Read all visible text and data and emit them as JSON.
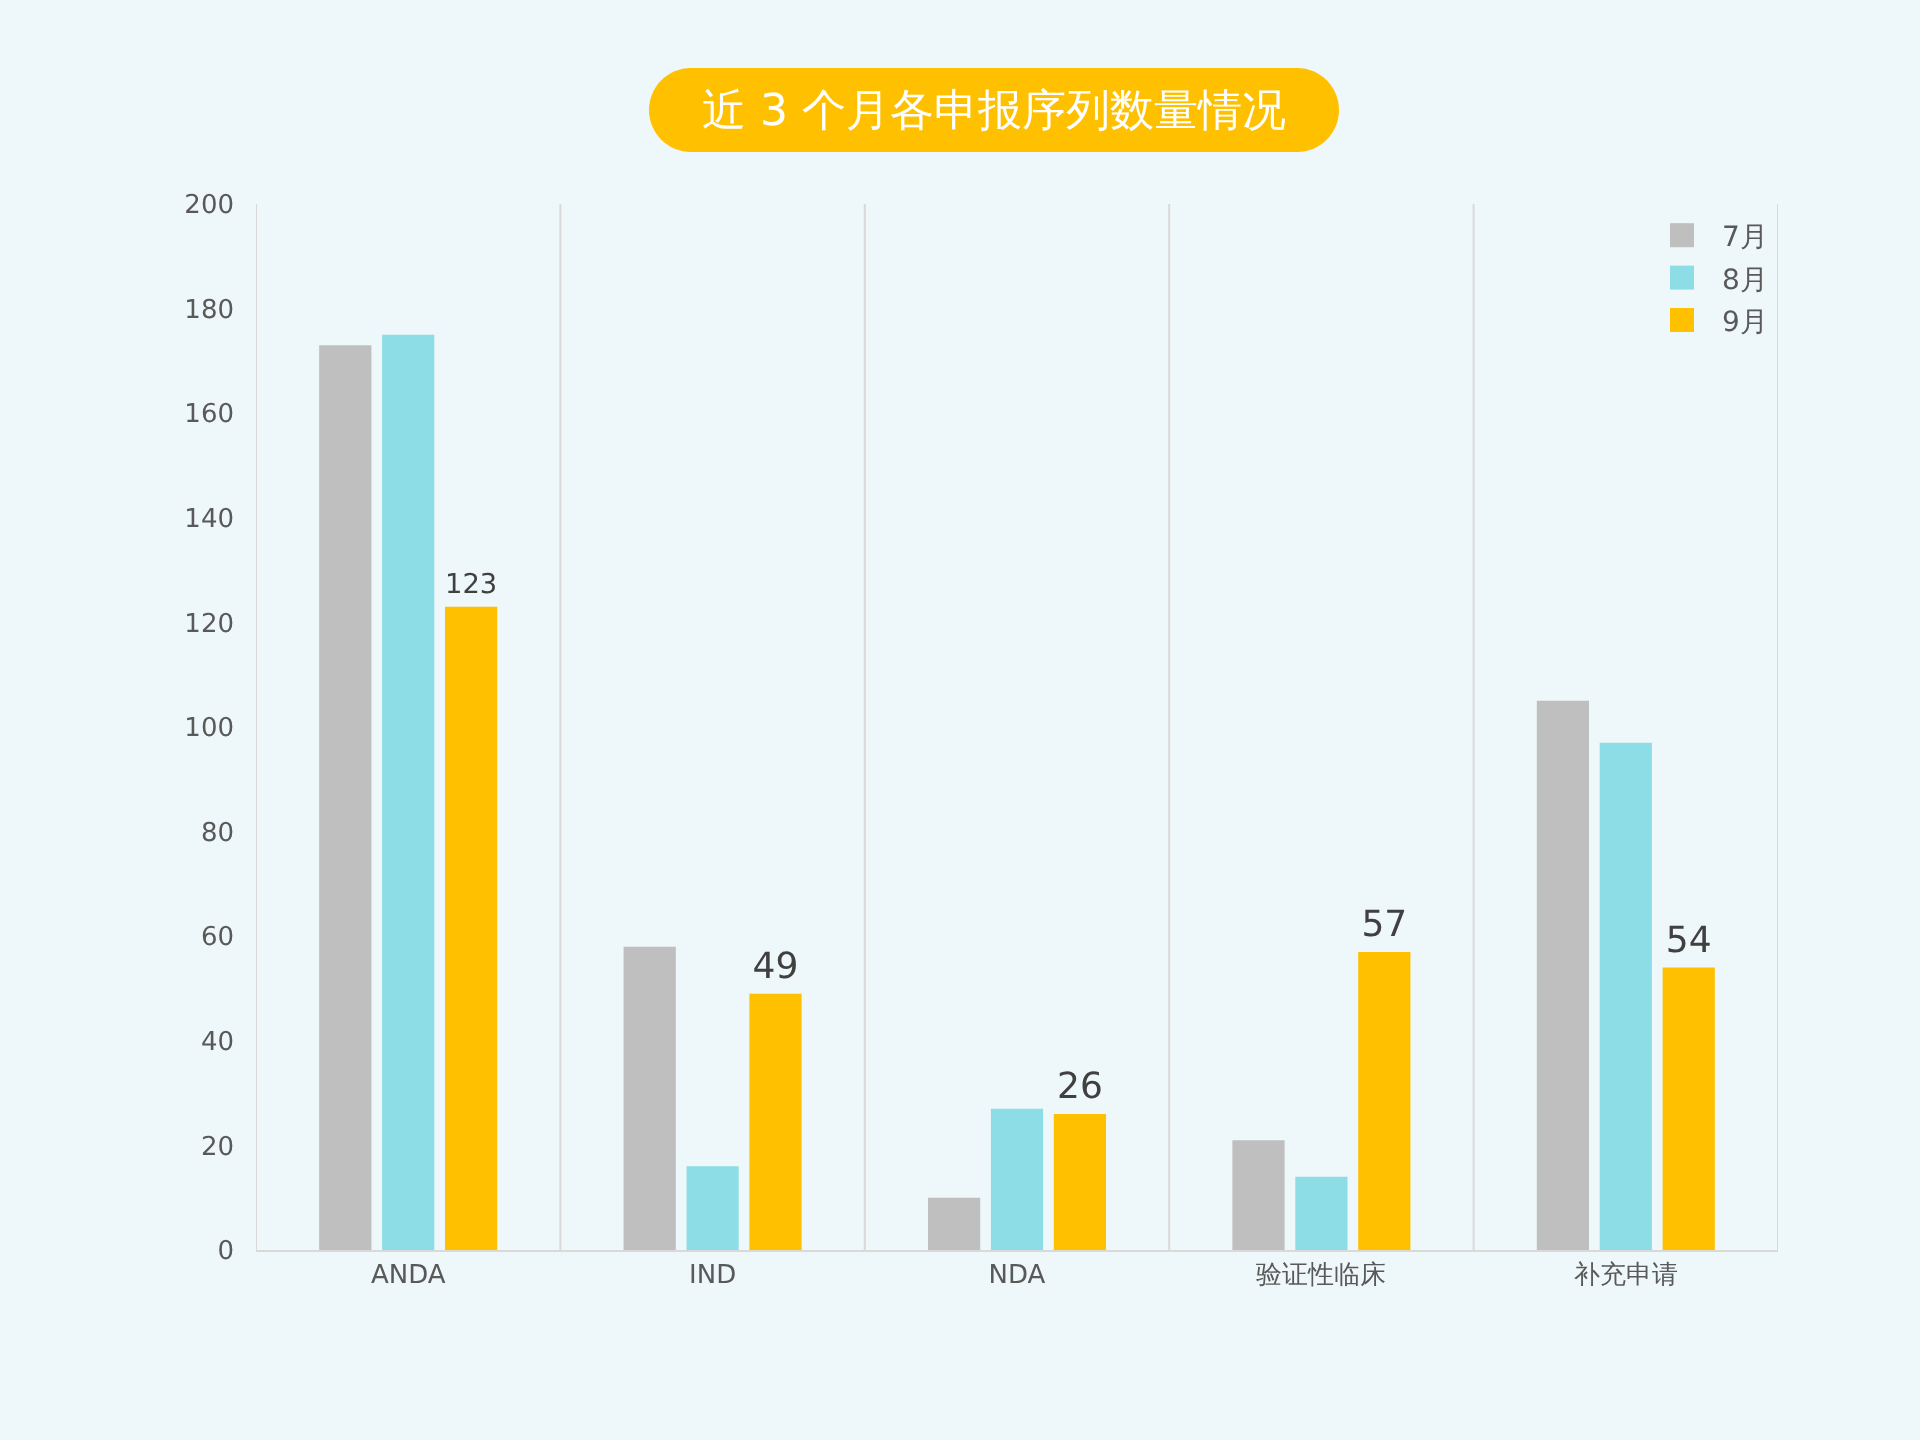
{
  "chart_data": {
    "type": "bar",
    "title": "近 3 个月各申报序列数量情况",
    "categories": [
      "ANDA",
      "IND",
      "NDA",
      "验证性临床",
      "补充申请"
    ],
    "series": [
      {
        "name": "7月",
        "color": "#bfbfbf",
        "values": [
          173,
          58,
          10,
          21,
          105
        ]
      },
      {
        "name": "8月",
        "color": "#8ddde6",
        "values": [
          175,
          16,
          27,
          14,
          97
        ]
      },
      {
        "name": "9月",
        "color": "#ffc000",
        "values": [
          123,
          49,
          26,
          57,
          54
        ],
        "value_labels": [
          "123",
          "49",
          "26",
          "57",
          "54"
        ]
      }
    ],
    "ylim": [
      0,
      200
    ],
    "yticks": [
      0,
      20,
      40,
      60,
      80,
      100,
      120,
      140,
      160,
      180,
      200
    ],
    "grid": "x",
    "legend": "top right"
  }
}
